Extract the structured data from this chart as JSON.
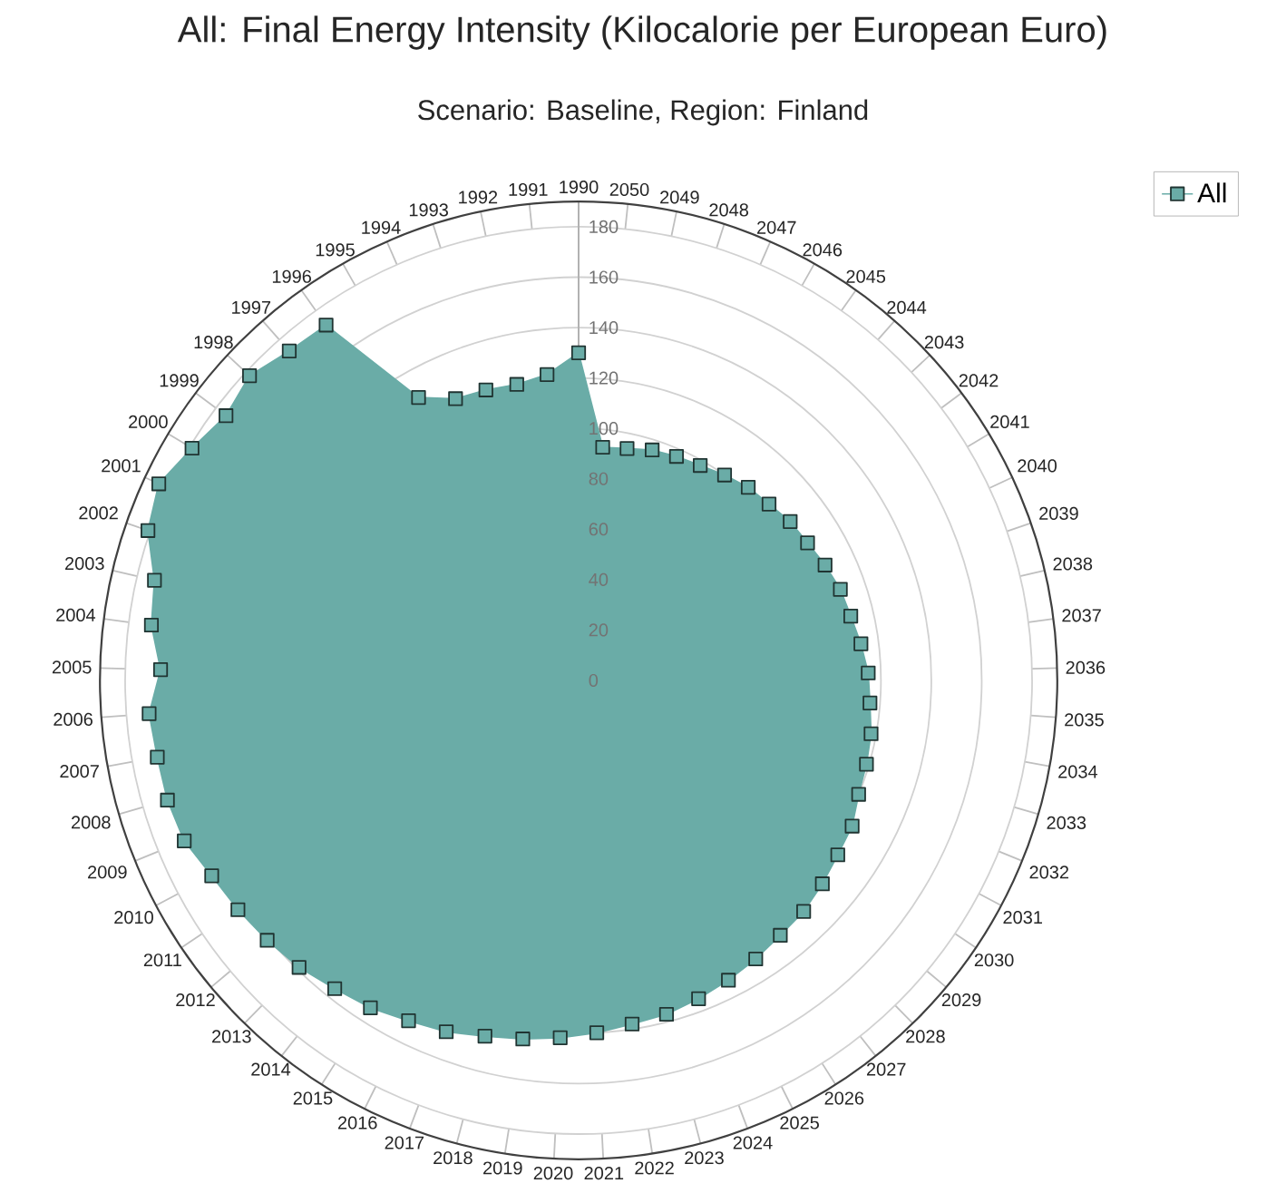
{
  "chart_data": {
    "type": "radar",
    "title": "All: Final Energy Intensity (Kilocalorie per European Euro)",
    "subtitle": "Scenario: Baseline, Region: Finland",
    "categories": [
      "1990",
      "2050",
      "2049",
      "2048",
      "2047",
      "2046",
      "2045",
      "2044",
      "2043",
      "2042",
      "2041",
      "2040",
      "2039",
      "2038",
      "2037",
      "2036",
      "2035",
      "2034",
      "2033",
      "2032",
      "2031",
      "2030",
      "2029",
      "2028",
      "2027",
      "2026",
      "2025",
      "2024",
      "2023",
      "2022",
      "2021",
      "2020",
      "2019",
      "2018",
      "2017",
      "2016",
      "2015",
      "2014",
      "2013",
      "2012",
      "2011",
      "2010",
      "2009",
      "2008",
      "2007",
      "2006",
      "2005",
      "2004",
      "2003",
      "2002",
      "2001",
      "2000",
      "1999",
      "1998",
      "1997",
      "1996",
      "1995",
      "1994",
      "1993",
      "1992",
      "1991"
    ],
    "series": [
      {
        "name": "All",
        "color": "#6aaca7",
        "values": [
          130,
          93,
          94,
          96,
          97,
          98,
          100,
          102,
          103,
          105,
          106,
          108,
          110,
          111,
          113,
          115,
          116,
          118,
          119,
          120,
          123,
          124,
          126,
          128,
          129,
          131,
          133,
          135,
          137,
          138,
          140,
          142,
          144,
          146,
          149,
          151,
          154,
          156,
          159,
          161,
          163,
          165,
          169,
          170,
          170,
          171,
          166,
          171,
          173,
          181,
          184,
          179,
          175,
          178,
          174,
          173,
          129,
          122,
          121,
          120,
          122
        ]
      }
    ],
    "ylim": [
      0,
      190
    ],
    "yticks": [
      0,
      20,
      40,
      60,
      80,
      100,
      120,
      140,
      160,
      180
    ],
    "grid": true,
    "legend": "top right",
    "marker": "square"
  }
}
